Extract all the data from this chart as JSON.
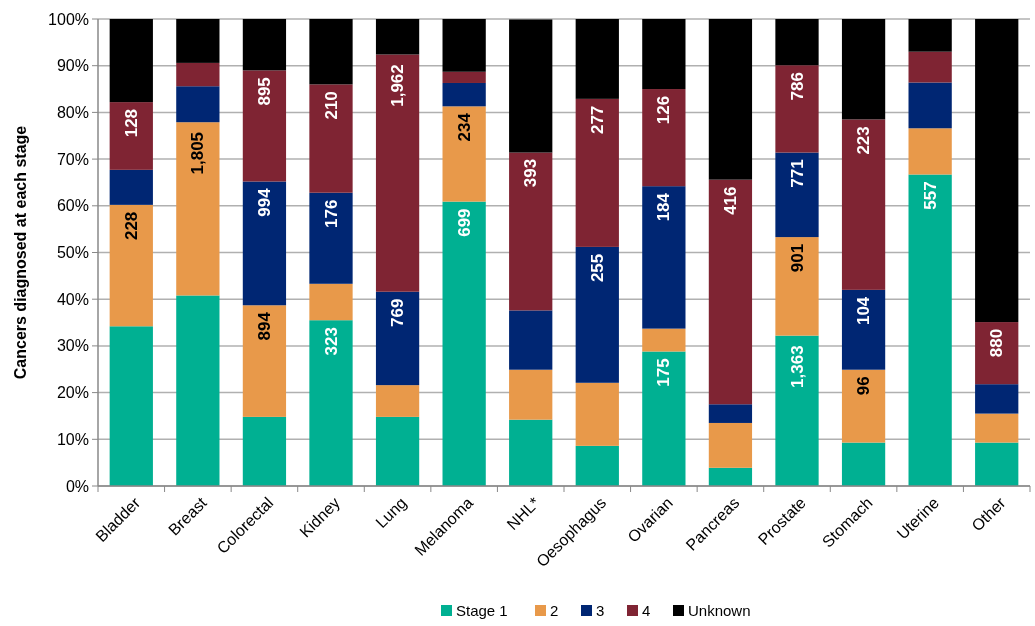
{
  "chart_data": {
    "type": "bar",
    "stacked": true,
    "ylabel": "Cancers diagnosed at each stage",
    "categories": [
      "Bladder",
      "Breast",
      "Colorectal",
      "Kidney",
      "Lung",
      "Melanoma",
      "NHL*",
      "Oesophagus",
      "Ovarian",
      "Pancreas",
      "Prostate",
      "Stomach",
      "Uterine",
      "Other"
    ],
    "series": [
      {
        "name": "Stage 1",
        "color": "#00b092",
        "values": [
          34.2,
          40.8,
          14.8,
          35.5,
          14.8,
          60.9,
          14.2,
          8.6,
          28.8,
          3.9,
          32.2,
          9.3,
          66.7,
          9.3
        ]
      },
      {
        "name": "2",
        "color": "#e8994a",
        "values": [
          26.0,
          37.1,
          23.9,
          7.8,
          6.8,
          20.4,
          10.7,
          13.5,
          4.9,
          9.6,
          21.1,
          15.6,
          9.9,
          6.2
        ]
      },
      {
        "name": "3",
        "color": "#002673",
        "values": [
          7.5,
          7.7,
          26.5,
          19.5,
          20.0,
          5.0,
          12.7,
          29.1,
          30.5,
          4.0,
          18.1,
          17.1,
          9.8,
          6.3
        ]
      },
      {
        "name": "4",
        "color": "#7f2433",
        "values": [
          14.5,
          5.0,
          23.8,
          23.2,
          50.8,
          2.4,
          33.8,
          31.7,
          20.8,
          48.1,
          18.7,
          36.5,
          6.6,
          13.3
        ]
      },
      {
        "name": "Unknown",
        "color": "#000000",
        "values": [
          17.8,
          9.4,
          11.0,
          14.0,
          7.6,
          11.3,
          28.5,
          17.1,
          15.0,
          34.4,
          9.9,
          21.5,
          7.0,
          64.9
        ]
      }
    ],
    "annotations": [
      {
        "text": "323",
        "x": "Kidney",
        "y": 35.5
      },
      {
        "text": "699",
        "x": "Melanoma",
        "y": 60.9
      },
      {
        "text": "175",
        "x": "Ovarian",
        "y": 28.8
      },
      {
        "text": "1,363",
        "x": "Prostate",
        "y": 32.2
      },
      {
        "text": "557",
        "x": "Uterine",
        "y": 66.7
      },
      {
        "text": "228",
        "x": "Bladder",
        "y": 60.2
      },
      {
        "text": "1,805",
        "x": "Breast",
        "y": 77.9
      },
      {
        "text": "894",
        "x": "Colorectal",
        "y": 38.7
      },
      {
        "text": "234",
        "x": "Melanoma",
        "y": 81.3
      },
      {
        "text": "901",
        "x": "Prostate",
        "y": 53.3
      },
      {
        "text": "96",
        "x": "Stomach",
        "y": 24.9
      },
      {
        "text": "994",
        "x": "Colorectal",
        "y": 65.2
      },
      {
        "text": "176",
        "x": "Kidney",
        "y": 62.8
      },
      {
        "text": "769",
        "x": "Lung",
        "y": 41.6
      },
      {
        "text": "255",
        "x": "Oesophagus",
        "y": 51.2
      },
      {
        "text": "184",
        "x": "Ovarian",
        "y": 64.2
      },
      {
        "text": "771",
        "x": "Prostate",
        "y": 71.4
      },
      {
        "text": "104",
        "x": "Stomach",
        "y": 42.0
      },
      {
        "text": "128",
        "x": "Bladder",
        "y": 82.2
      },
      {
        "text": "895",
        "x": "Colorectal",
        "y": 89.0
      },
      {
        "text": "210",
        "x": "Kidney",
        "y": 86.0
      },
      {
        "text": "1,962",
        "x": "Lung",
        "y": 92.4
      },
      {
        "text": "393",
        "x": "NHL*",
        "y": 71.5
      },
      {
        "text": "277",
        "x": "Oesophagus",
        "y": 82.9
      },
      {
        "text": "126",
        "x": "Ovarian",
        "y": 85.0
      },
      {
        "text": "416",
        "x": "Pancreas",
        "y": 65.6
      },
      {
        "text": "786",
        "x": "Prostate",
        "y": 90.1
      },
      {
        "text": "223",
        "x": "Stomach",
        "y": 78.5
      },
      {
        "text": "880",
        "x": "Other",
        "y": 35.1
      }
    ],
    "ylim": [
      0,
      100
    ],
    "yticks": [
      {
        "value": 0,
        "label": "0%"
      },
      {
        "value": 10,
        "label": "10%"
      },
      {
        "value": 20,
        "label": "20%"
      },
      {
        "value": 30,
        "label": "30%"
      },
      {
        "value": 40,
        "label": "40%"
      },
      {
        "value": 50,
        "label": "50%"
      },
      {
        "value": 60,
        "label": "60%"
      },
      {
        "value": 70,
        "label": "70%"
      },
      {
        "value": 80,
        "label": "80%"
      },
      {
        "value": 90,
        "label": "90%"
      },
      {
        "value": 100,
        "label": "100%"
      }
    ],
    "grid": "y",
    "legend": "bottom"
  }
}
